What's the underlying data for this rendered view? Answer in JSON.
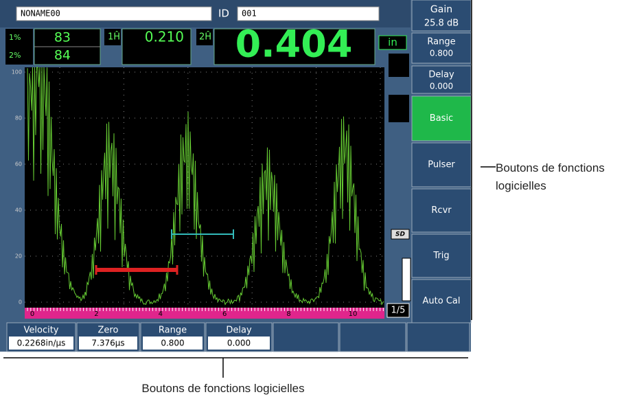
{
  "header": {
    "file_name": "NONAME00",
    "id_label": "ID",
    "id_value": "001"
  },
  "gain": {
    "label": "Gain",
    "value": "25.8 dB"
  },
  "readings": [
    {
      "label": "1%",
      "value": "83"
    },
    {
      "label": "2%",
      "value": "84"
    }
  ],
  "measurement_1": "0.210",
  "measurement_2": "0.404",
  "unit": "in",
  "side_buttons": [
    {
      "label": "Range",
      "value": "0.800"
    },
    {
      "label": "Delay",
      "value": "0.000"
    },
    {
      "label": "Basic"
    },
    {
      "label": "Pulser"
    },
    {
      "label": "Rcvr"
    },
    {
      "label": "Trig"
    },
    {
      "label": "Auto Cal"
    }
  ],
  "screen": {
    "yticks": [
      100,
      80,
      60,
      40,
      20,
      0
    ],
    "xticks": [
      0,
      2,
      4,
      6,
      8,
      10
    ]
  },
  "sd_label": "SD",
  "page": "1/5",
  "bottom_buttons": [
    {
      "label": "Velocity",
      "value": "0.2268in/µs"
    },
    {
      "label": "Zero",
      "value": "7.376µs"
    },
    {
      "label": "Range",
      "value": "0.800"
    },
    {
      "label": "Delay",
      "value": "0.000"
    }
  ],
  "annotations": {
    "right": "Boutons de fonctions logicielles",
    "bottom": "Boutons de fonctions logicielles"
  }
}
